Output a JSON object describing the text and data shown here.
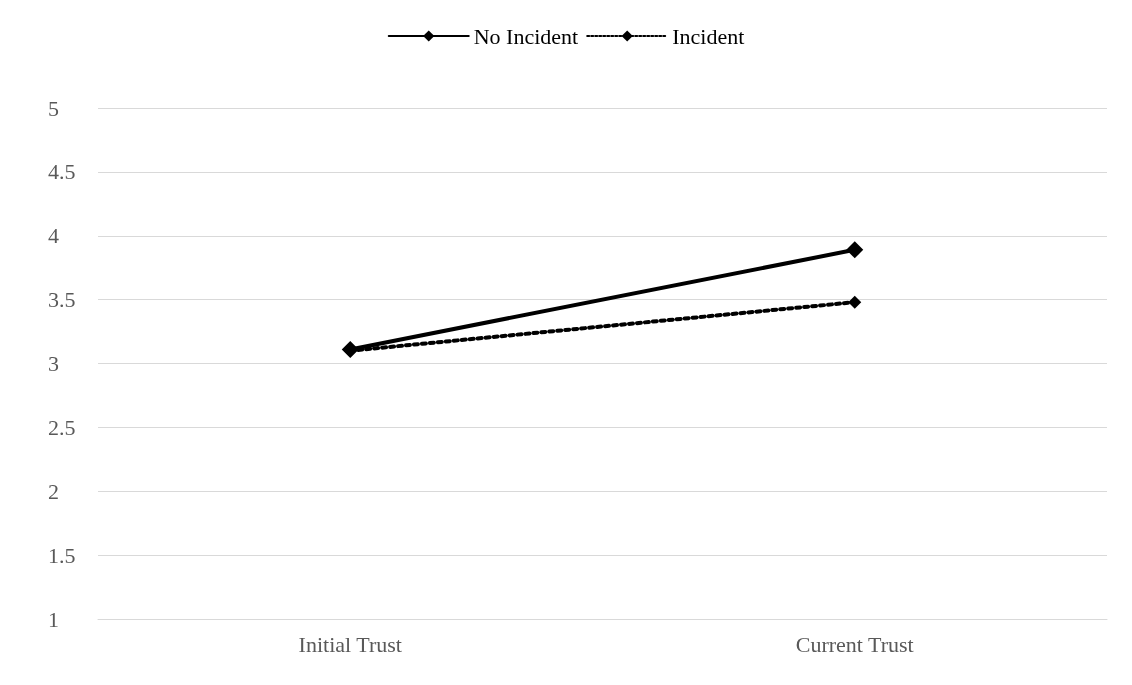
{
  "chart_data": {
    "type": "line",
    "categories": [
      "Initial Trust",
      "Current Trust"
    ],
    "series": [
      {
        "name": "No Incident",
        "color": "#000000",
        "line_style": "solid",
        "values": [
          3.11,
          3.89
        ]
      },
      {
        "name": "Incident",
        "color": "#000000",
        "line_style": "dotted",
        "values": [
          3.1,
          3.48
        ]
      }
    ],
    "ylim": [
      1,
      5
    ],
    "yticks": [
      1,
      1.5,
      2,
      2.5,
      3,
      3.5,
      4,
      4.5,
      5
    ],
    "grid": "y",
    "legend": "top",
    "marker": "diamond"
  }
}
